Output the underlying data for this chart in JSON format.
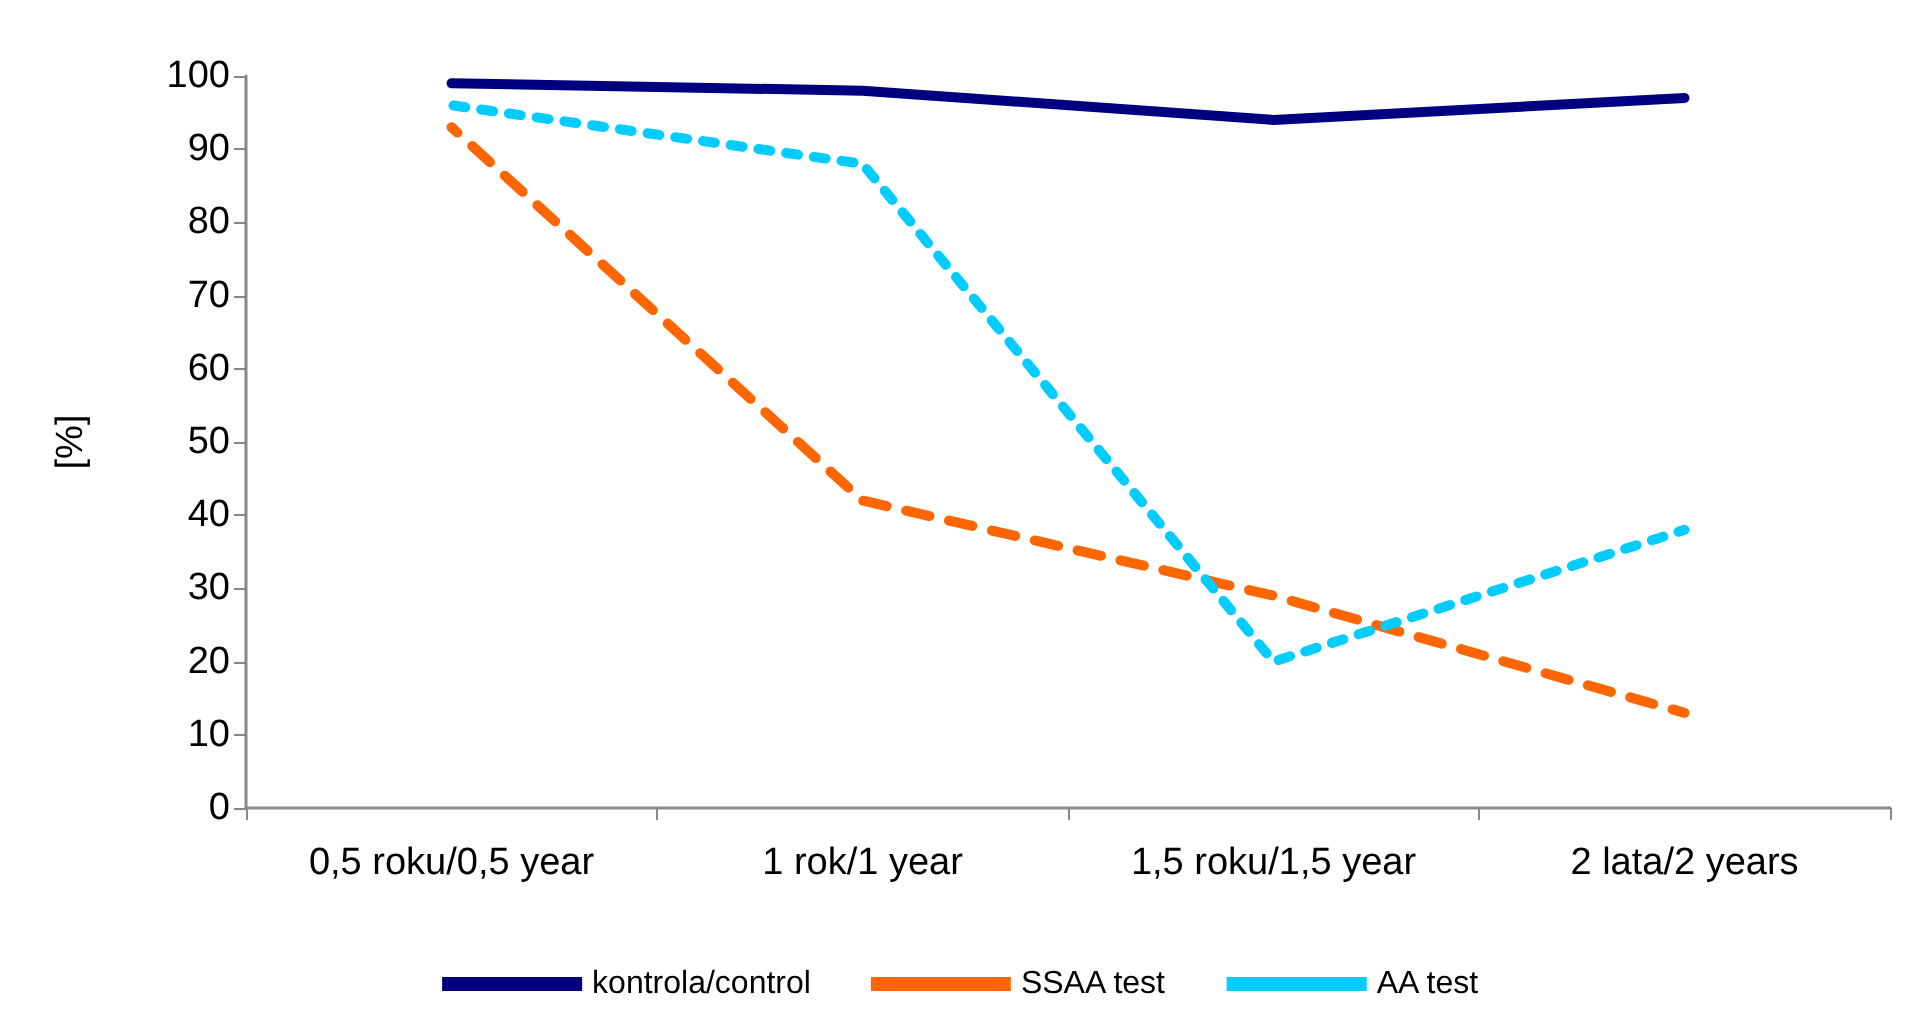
{
  "chart_data": {
    "type": "line",
    "ylabel": "[%]",
    "categories": [
      "0,5 roku/0,5 year",
      "1 rok/1 year",
      "1,5 roku/1,5 year",
      "2 lata/2 years"
    ],
    "series": [
      {
        "name": "kontrola/control",
        "color": "#000080",
        "line_style": "solid",
        "values": [
          99,
          98,
          94,
          97
        ]
      },
      {
        "name": "SSAA test",
        "color": "#ff6600",
        "line_style": "dashed",
        "values": [
          93,
          42,
          29,
          13
        ]
      },
      {
        "name": "AA test",
        "color": "#00ccff",
        "line_style": "dotted",
        "values": [
          96,
          88,
          20,
          38
        ]
      }
    ],
    "ylim": [
      0,
      100
    ],
    "yticks": [
      0,
      10,
      20,
      30,
      40,
      50,
      60,
      70,
      80,
      90,
      100
    ],
    "grid": false,
    "legend": "bottom",
    "marker": "none"
  }
}
